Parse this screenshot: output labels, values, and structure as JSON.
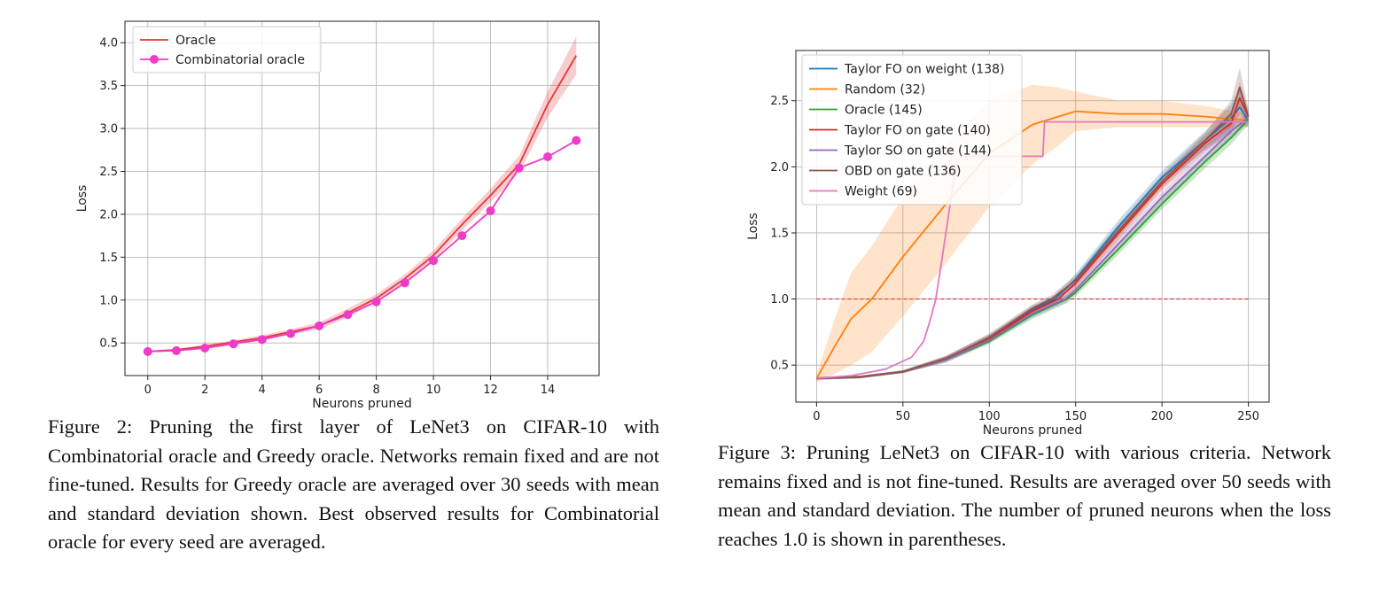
{
  "figures": [
    {
      "caption": "Figure 2: Pruning the first layer of LeNet3 on CIFAR-10 with Combinatorial oracle and Greedy oracle. Networks remain fixed and are not fine-tuned. Results for Greedy oracle are averaged over 30 seeds with mean and standard deviation shown. Best observed results for Combinatorial oracle for every seed are averaged."
    },
    {
      "caption": "Figure 3: Pruning LeNet3 on CIFAR-10 with various criteria. Network remains fixed and is not fine-tuned. Results are averaged over 50 seeds with mean and standard deviation. The number of pruned neurons when the loss reaches 1.0 is shown in parentheses."
    }
  ],
  "chart_data": [
    {
      "type": "line",
      "xlabel": "Neurons pruned",
      "ylabel": "Loss",
      "xlim": [
        -0.8,
        15.8
      ],
      "ylim": [
        0.12,
        4.25
      ],
      "xticks": [
        0,
        2,
        4,
        6,
        8,
        10,
        12,
        14
      ],
      "yticks": [
        0.5,
        1.0,
        1.5,
        2.0,
        2.5,
        3.0,
        3.5,
        4.0
      ],
      "grid": true,
      "legend_position": "top-left",
      "series": [
        {
          "name": "Oracle",
          "color": "#e3373b",
          "marker": false,
          "x": [
            0,
            1,
            2,
            3,
            4,
            5,
            6,
            7,
            8,
            9,
            10,
            11,
            12,
            13,
            14,
            15
          ],
          "y": [
            0.4,
            0.42,
            0.46,
            0.51,
            0.56,
            0.63,
            0.7,
            0.85,
            1.02,
            1.25,
            1.52,
            1.88,
            2.22,
            2.58,
            3.28,
            3.85
          ],
          "band": [
            0.01,
            0.01,
            0.02,
            0.02,
            0.03,
            0.03,
            0.04,
            0.05,
            0.05,
            0.05,
            0.06,
            0.07,
            0.08,
            0.1,
            0.15,
            0.22
          ]
        },
        {
          "name": "Combinatorial oracle",
          "color": "#ee3bc8",
          "marker": true,
          "x": [
            0,
            1,
            2,
            3,
            4,
            5,
            6,
            7,
            8,
            9,
            10,
            11,
            12,
            13,
            14,
            15
          ],
          "y": [
            0.4,
            0.41,
            0.44,
            0.49,
            0.54,
            0.61,
            0.7,
            0.83,
            0.98,
            1.2,
            1.46,
            1.75,
            2.04,
            2.54,
            2.67,
            2.86
          ]
        }
      ]
    },
    {
      "type": "line",
      "xlabel": "Neurons pruned",
      "ylabel": "Loss",
      "xlim": [
        -12,
        262
      ],
      "ylim": [
        0.22,
        2.88
      ],
      "xticks": [
        0,
        50,
        100,
        150,
        200,
        250
      ],
      "yticks": [
        0.5,
        1.0,
        1.5,
        2.0,
        2.5
      ],
      "grid": true,
      "legend_position": "top-left",
      "threshold": {
        "y": 1.0,
        "x_range": [
          0,
          250
        ],
        "color": "#d62728",
        "style": "dashed"
      },
      "series": [
        {
          "name": "Taylor FO on weight (138)",
          "color": "#1f77b4",
          "x": [
            0,
            25,
            50,
            75,
            100,
            125,
            138,
            150,
            175,
            200,
            225,
            240,
            245,
            250
          ],
          "y": [
            0.4,
            0.41,
            0.45,
            0.55,
            0.7,
            0.92,
            1.0,
            1.15,
            1.55,
            1.92,
            2.2,
            2.37,
            2.45,
            2.35
          ],
          "band": [
            0.01,
            0.01,
            0.01,
            0.02,
            0.03,
            0.03,
            0.03,
            0.04,
            0.05,
            0.05,
            0.07,
            0.1,
            0.14,
            0.05
          ]
        },
        {
          "name": "Random (32)",
          "color": "#ff7f0e",
          "x": [
            0,
            10,
            20,
            32,
            50,
            75,
            100,
            125,
            140,
            150,
            175,
            200,
            225,
            250
          ],
          "y": [
            0.4,
            0.63,
            0.85,
            1.0,
            1.32,
            1.72,
            2.1,
            2.32,
            2.38,
            2.42,
            2.4,
            2.4,
            2.38,
            2.35
          ],
          "band": [
            0.03,
            0.2,
            0.35,
            0.4,
            0.45,
            0.45,
            0.4,
            0.3,
            0.22,
            0.15,
            0.1,
            0.1,
            0.08,
            0.05
          ]
        },
        {
          "name": "Oracle (145)",
          "color": "#2ca02c",
          "x": [
            0,
            25,
            50,
            75,
            100,
            125,
            145,
            150,
            175,
            200,
            225,
            240,
            250
          ],
          "y": [
            0.4,
            0.41,
            0.45,
            0.54,
            0.68,
            0.88,
            1.0,
            1.05,
            1.38,
            1.72,
            2.04,
            2.22,
            2.36
          ],
          "band": [
            0.01,
            0.01,
            0.01,
            0.02,
            0.02,
            0.03,
            0.03,
            0.03,
            0.04,
            0.04,
            0.05,
            0.05,
            0.04
          ]
        },
        {
          "name": "Taylor FO on gate (140)",
          "color": "#d62728",
          "x": [
            0,
            25,
            50,
            75,
            100,
            125,
            140,
            150,
            175,
            200,
            225,
            240,
            245,
            250
          ],
          "y": [
            0.4,
            0.41,
            0.45,
            0.55,
            0.7,
            0.91,
            1.0,
            1.12,
            1.5,
            1.87,
            2.18,
            2.33,
            2.52,
            2.38
          ],
          "band": [
            0.01,
            0.01,
            0.01,
            0.02,
            0.03,
            0.03,
            0.03,
            0.04,
            0.05,
            0.05,
            0.06,
            0.08,
            0.12,
            0.05
          ]
        },
        {
          "name": "Taylor SO on gate (144)",
          "color": "#9467bd",
          "x": [
            0,
            25,
            50,
            75,
            100,
            125,
            144,
            150,
            175,
            200,
            225,
            240,
            250
          ],
          "y": [
            0.4,
            0.41,
            0.45,
            0.54,
            0.69,
            0.89,
            1.0,
            1.07,
            1.42,
            1.77,
            2.08,
            2.27,
            2.37
          ],
          "band": [
            0.01,
            0.01,
            0.01,
            0.02,
            0.02,
            0.03,
            0.03,
            0.03,
            0.04,
            0.04,
            0.05,
            0.06,
            0.04
          ]
        },
        {
          "name": "OBD on gate (136)",
          "color": "#8c564b",
          "x": [
            0,
            25,
            50,
            75,
            100,
            125,
            136,
            150,
            175,
            200,
            225,
            240,
            245,
            250
          ],
          "y": [
            0.4,
            0.41,
            0.45,
            0.55,
            0.71,
            0.93,
            1.0,
            1.14,
            1.52,
            1.89,
            2.2,
            2.4,
            2.6,
            2.38
          ],
          "band": [
            0.01,
            0.01,
            0.01,
            0.02,
            0.03,
            0.03,
            0.03,
            0.04,
            0.05,
            0.05,
            0.06,
            0.1,
            0.15,
            0.06
          ]
        },
        {
          "name": "Weight (69)",
          "color": "#e377c2",
          "x": [
            0,
            20,
            40,
            55,
            62,
            66,
            69,
            72,
            76,
            80,
            82,
            84,
            110,
            120,
            128,
            131,
            132,
            135,
            150,
            200,
            250
          ],
          "y": [
            0.4,
            0.42,
            0.47,
            0.56,
            0.68,
            0.85,
            1.0,
            1.25,
            1.6,
            1.95,
            2.05,
            2.08,
            2.08,
            2.08,
            2.08,
            2.08,
            2.34,
            2.34,
            2.34,
            2.34,
            2.34
          ]
        }
      ]
    }
  ]
}
